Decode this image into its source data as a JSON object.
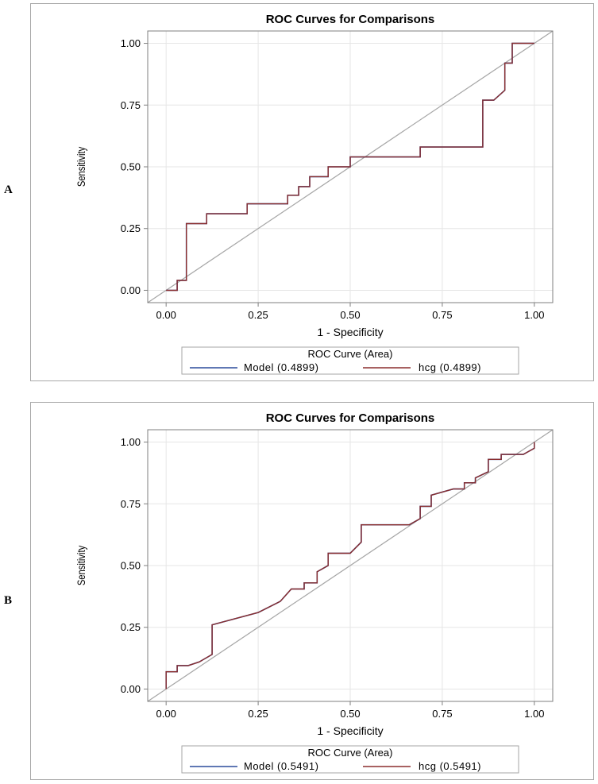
{
  "panels": [
    {
      "letter": "A",
      "title": "ROC Curves for Comparisons",
      "legend_title": "ROC Curve (Area)",
      "legend_model": "Model (0.4899)",
      "legend_hcg": "hcg (0.4899)"
    },
    {
      "letter": "B",
      "title": "ROC Curves for Comparisons",
      "legend_title": "ROC Curve (Area)",
      "legend_model": "Model (0.5491)",
      "legend_hcg": "hcg (0.5491)"
    }
  ],
  "chart_data": [
    {
      "type": "line",
      "title": "ROC Curves for Comparisons",
      "xlabel": "1 - Specificity",
      "ylabel": "Sensitivity",
      "xlim": [
        -0.05,
        1.05
      ],
      "ylim": [
        -0.05,
        1.05
      ],
      "xticks": [
        0,
        0.25,
        0.5,
        0.75,
        1
      ],
      "xtick_labels": [
        "0.00",
        "0.25",
        "0.50",
        "0.75",
        "1.00"
      ],
      "yticks": [
        0,
        0.25,
        0.5,
        0.75,
        1
      ],
      "ytick_labels": [
        "0.00",
        "0.25",
        "0.50",
        "0.75",
        "1.00"
      ],
      "grid": true,
      "legend_position": "bottom",
      "reference_line": [
        [
          0,
          0
        ],
        [
          1,
          1
        ]
      ],
      "series": [
        {
          "name": "Model (0.4899)",
          "color": "#2b4c9b",
          "x": [
            0,
            0.03,
            0.03,
            0.055,
            0.055,
            0.11,
            0.11,
            0.22,
            0.22,
            0.33,
            0.33,
            0.36,
            0.36,
            0.39,
            0.39,
            0.44,
            0.44,
            0.5,
            0.5,
            0.69,
            0.69,
            0.86,
            0.86,
            0.89,
            0.92,
            0.92,
            0.94,
            0.94,
            1.0
          ],
          "y": [
            0,
            0,
            0.04,
            0.04,
            0.27,
            0.27,
            0.31,
            0.31,
            0.35,
            0.35,
            0.385,
            0.385,
            0.42,
            0.42,
            0.46,
            0.46,
            0.5,
            0.5,
            0.54,
            0.54,
            0.58,
            0.58,
            0.77,
            0.77,
            0.81,
            0.92,
            0.92,
            1.0,
            1.0
          ]
        },
        {
          "name": "hcg (0.4899)",
          "color": "#8b2e2e",
          "x": [
            0,
            0.03,
            0.03,
            0.055,
            0.055,
            0.11,
            0.11,
            0.22,
            0.22,
            0.33,
            0.33,
            0.36,
            0.36,
            0.39,
            0.39,
            0.44,
            0.44,
            0.5,
            0.5,
            0.69,
            0.69,
            0.86,
            0.86,
            0.89,
            0.92,
            0.92,
            0.94,
            0.94,
            1.0
          ],
          "y": [
            0,
            0,
            0.04,
            0.04,
            0.27,
            0.27,
            0.31,
            0.31,
            0.35,
            0.35,
            0.385,
            0.385,
            0.42,
            0.42,
            0.46,
            0.46,
            0.5,
            0.5,
            0.54,
            0.54,
            0.58,
            0.58,
            0.77,
            0.77,
            0.81,
            0.92,
            0.92,
            1.0,
            1.0
          ]
        }
      ]
    },
    {
      "type": "line",
      "title": "ROC Curves for Comparisons",
      "xlabel": "1 - Specificity",
      "ylabel": "Sensitivity",
      "xlim": [
        -0.05,
        1.05
      ],
      "ylim": [
        -0.05,
        1.05
      ],
      "xticks": [
        0,
        0.25,
        0.5,
        0.75,
        1
      ],
      "xtick_labels": [
        "0.00",
        "0.25",
        "0.50",
        "0.75",
        "1.00"
      ],
      "yticks": [
        0,
        0.25,
        0.5,
        0.75,
        1
      ],
      "ytick_labels": [
        "0.00",
        "0.25",
        "0.50",
        "0.75",
        "1.00"
      ],
      "grid": true,
      "legend_position": "bottom",
      "reference_line": [
        [
          0,
          0
        ],
        [
          1,
          1
        ]
      ],
      "series": [
        {
          "name": "Model (0.5491)",
          "color": "#2b4c9b",
          "x": [
            0,
            0,
            0.03,
            0.03,
            0.06,
            0.06,
            0.09,
            0.125,
            0.125,
            0.25,
            0.31,
            0.34,
            0.34,
            0.375,
            0.375,
            0.41,
            0.41,
            0.44,
            0.44,
            0.5,
            0.53,
            0.53,
            0.66,
            0.69,
            0.69,
            0.72,
            0.72,
            0.78,
            0.81,
            0.81,
            0.84,
            0.84,
            0.875,
            0.875,
            0.91,
            0.91,
            0.97,
            1.0,
            1.0
          ],
          "y": [
            0,
            0.07,
            0.07,
            0.095,
            0.095,
            0.095,
            0.11,
            0.14,
            0.26,
            0.31,
            0.355,
            0.405,
            0.405,
            0.405,
            0.43,
            0.43,
            0.475,
            0.5,
            0.55,
            0.55,
            0.595,
            0.665,
            0.665,
            0.69,
            0.74,
            0.74,
            0.785,
            0.81,
            0.81,
            0.835,
            0.835,
            0.855,
            0.88,
            0.93,
            0.93,
            0.95,
            0.95,
            0.975,
            1.0
          ]
        },
        {
          "name": "hcg (0.5491)",
          "color": "#8b2e2e",
          "x": [
            0,
            0,
            0.03,
            0.03,
            0.06,
            0.06,
            0.09,
            0.125,
            0.125,
            0.25,
            0.31,
            0.34,
            0.34,
            0.375,
            0.375,
            0.41,
            0.41,
            0.44,
            0.44,
            0.5,
            0.53,
            0.53,
            0.66,
            0.69,
            0.69,
            0.72,
            0.72,
            0.78,
            0.81,
            0.81,
            0.84,
            0.84,
            0.875,
            0.875,
            0.91,
            0.91,
            0.97,
            1.0,
            1.0
          ],
          "y": [
            0,
            0.07,
            0.07,
            0.095,
            0.095,
            0.095,
            0.11,
            0.14,
            0.26,
            0.31,
            0.355,
            0.405,
            0.405,
            0.405,
            0.43,
            0.43,
            0.475,
            0.5,
            0.55,
            0.55,
            0.595,
            0.665,
            0.665,
            0.69,
            0.74,
            0.74,
            0.785,
            0.81,
            0.81,
            0.835,
            0.835,
            0.855,
            0.88,
            0.93,
            0.93,
            0.95,
            0.95,
            0.975,
            1.0
          ]
        }
      ]
    }
  ]
}
